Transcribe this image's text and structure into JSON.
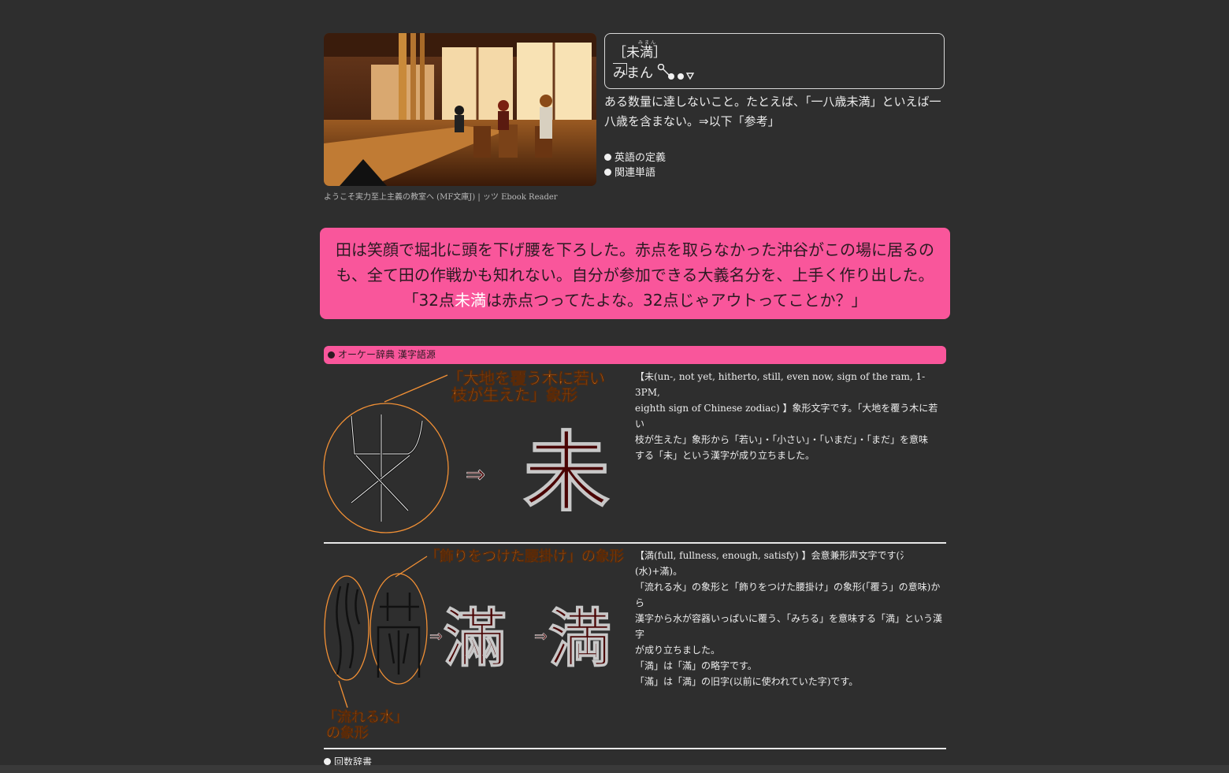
{
  "header": {
    "caption": "ようこそ実力至上主義の教室へ (MF文庫J) | ッツ Ebook Reader"
  },
  "word": {
    "kanji": "［未満］",
    "ruby": "みまん",
    "kana": "みまん",
    "definition": "ある数量に達しないこと。たとえば、「一八歳未満」といえば一八歳を含まない。⇒以下「参考」"
  },
  "links": {
    "english": "英語の定義",
    "related": "関連単語",
    "count_dict": "回数辞書"
  },
  "quote": {
    "line1": "田は笑顔で堀北に頭を下げ腰を下ろした。赤点を取らなかった沖谷がこの場に居るの",
    "line2": "も、全て田の作戦かも知れない。自分が参加できる大義名分を、上手く作り出した。",
    "line3_pre": "「32点",
    "line3_hl": "未満",
    "line3_post": "は赤点つってたよな。32点じゃアウトってことか？」"
  },
  "etymology": {
    "section_title": "オーケー辞典 漢字語源",
    "mi": {
      "label_line1": "「大地を覆う木に若い",
      "label_line2": "枝が生えた」象形",
      "arrow": "⇒",
      "char": "未",
      "text_lines": [
        "【未(un-, not yet, hitherto, still, even now, sign of the ram, 1-3PM,",
        "eighth sign of Chinese zodiac) 】象形文字です。「大地を覆う木に若い",
        "枝が生えた」象形から「若い」・「小さい」・「いまだ」・「まだ」を意味",
        "する「未」という漢字が成り立ちました。"
      ]
    },
    "man": {
      "label_top": "「飾りをつけた腰掛け」の象形",
      "label_bottom_line1": "「流れる水」",
      "label_bottom_line2": "の象形",
      "arrow": "⇒",
      "char_old": "滿",
      "char_new": "満",
      "text_lines": [
        "【満(full, fullness, enough, satisfy) 】会意兼形声文字です(氵(水)+滿)。",
        "「流れる水」の象形と「飾りをつけた腰掛け」の象形(「覆う」の意味)から",
        "漢字から水が容器いっぱいに覆う、「みちる」を意味する「満」という漢字",
        "が成り立ちました。",
        "「満」は「滿」の略字です。",
        "「滿」は「満」の旧字(以前に使われていた字)です。"
      ]
    }
  },
  "colors": {
    "background": "#2e2e2e",
    "accent_pink": "#f9569b",
    "orange": "#f29035",
    "dark_red": "#4a0404"
  }
}
